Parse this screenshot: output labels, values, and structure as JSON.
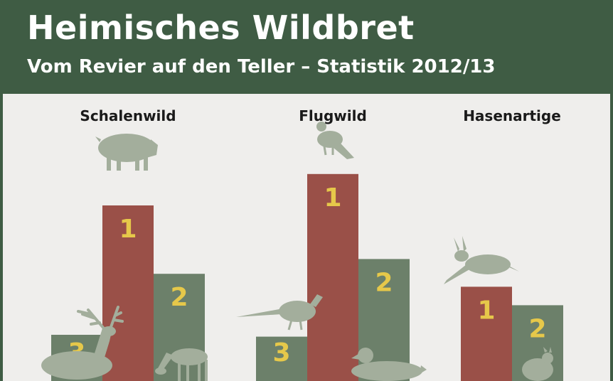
{
  "header": {
    "title": "Heimisches Wildbret",
    "subtitle": "Vom Revier auf den Teller – Statistik 2012/13"
  },
  "colors": {
    "header_bg": "#3f5c44",
    "rank1": "#9a5048",
    "rank_other": "#6c806a",
    "rank_number": "#e6c84a",
    "animal": "#a3ae9c"
  },
  "chart_data": {
    "type": "bar",
    "title": "Heimisches Wildbret",
    "subtitle": "Vom Revier auf den Teller – Statistik 2012/13",
    "grid": false,
    "axes_visible": false,
    "groups": [
      {
        "name": "Schalenwild",
        "bars": [
          {
            "rank": "3",
            "animal": "deer-icon",
            "relative_value": 0.25
          },
          {
            "rank": "1",
            "animal": "boar-icon",
            "relative_value": 0.95
          },
          {
            "rank": "2",
            "animal": "roe-deer-icon",
            "relative_value": 0.58
          }
        ]
      },
      {
        "name": "Flugwild",
        "bars": [
          {
            "rank": "3",
            "animal": "pheasant-icon",
            "relative_value": 0.24
          },
          {
            "rank": "1",
            "animal": "pigeon-icon",
            "relative_value": 1.12
          },
          {
            "rank": "2",
            "animal": "duck-icon",
            "relative_value": 0.66
          }
        ]
      },
      {
        "name": "Hasenartige",
        "bars": [
          {
            "rank": "1",
            "animal": "hare-icon",
            "relative_value": 0.51
          },
          {
            "rank": "2",
            "animal": "rabbit-icon",
            "relative_value": 0.41
          }
        ]
      }
    ]
  }
}
